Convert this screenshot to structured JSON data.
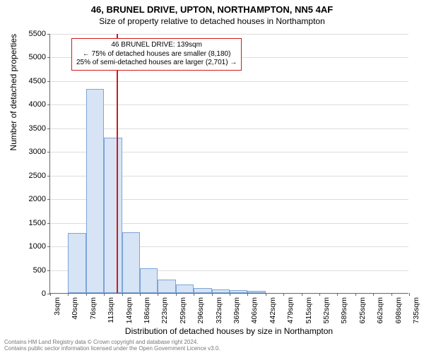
{
  "title_main": "46, BRUNEL DRIVE, UPTON, NORTHAMPTON, NN5 4AF",
  "title_sub": "Size of property relative to detached houses in Northampton",
  "y_axis_label": "Number of detached properties",
  "x_axis_label": "Distribution of detached houses by size in Northampton",
  "footer_line1": "Contains HM Land Registry data © Crown copyright and database right 2024.",
  "footer_line2": "Contains public sector information licensed under the Open Government Licence v3.0.",
  "chart": {
    "type": "histogram",
    "background_color": "#ffffff",
    "grid_color": "#dddddd",
    "axis_color": "#666666",
    "bar_fill": "#d6e4f5",
    "bar_stroke": "#7da5d8",
    "marker_color": "#d11919",
    "anno_border": "#d11919",
    "y": {
      "min": 0,
      "max": 5500,
      "tick_step": 500,
      "ticks": [
        0,
        500,
        1000,
        1500,
        2000,
        2500,
        3000,
        3500,
        4000,
        4500,
        5000,
        5500
      ]
    },
    "x": {
      "ticks": [
        "3sqm",
        "40sqm",
        "76sqm",
        "113sqm",
        "149sqm",
        "186sqm",
        "223sqm",
        "259sqm",
        "296sqm",
        "332sqm",
        "369sqm",
        "406sqm",
        "442sqm",
        "479sqm",
        "515sqm",
        "552sqm",
        "589sqm",
        "625sqm",
        "662sqm",
        "698sqm",
        "735sqm"
      ]
    },
    "bars": [
      0,
      1270,
      4320,
      3290,
      1280,
      520,
      280,
      180,
      100,
      70,
      55,
      40,
      0,
      0,
      0,
      0,
      0,
      0,
      0,
      0
    ],
    "marker": {
      "value_sqm": 139,
      "range_min": 3,
      "range_max": 735,
      "anno_lines": [
        "46 BRUNEL DRIVE: 139sqm",
        "← 75% of detached houses are smaller (8,180)",
        "25% of semi-detached houses are larger (2,701) →"
      ]
    }
  }
}
